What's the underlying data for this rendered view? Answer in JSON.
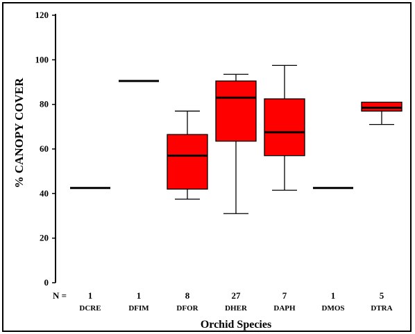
{
  "chart_data": {
    "type": "boxplot",
    "title": "",
    "xlabel": "Orchid Species",
    "ylabel": "% CANOPY COVER",
    "ylim": [
      0,
      120
    ],
    "yticks": [
      0,
      20,
      40,
      60,
      80,
      100,
      120
    ],
    "grid": false,
    "n_prefix": "N =",
    "box_color": "#ff0000",
    "categories": [
      "DCRE",
      "DFIM",
      "DFOR",
      "DHER",
      "DAPH",
      "DMOS",
      "DTRA"
    ],
    "n": [
      "1",
      "1",
      "8",
      "27",
      "7",
      "1",
      "5"
    ],
    "boxes": [
      {
        "min": 42.5,
        "q1": 42.5,
        "median": 42.5,
        "q3": 42.5,
        "max": 42.5
      },
      {
        "min": 90.5,
        "q1": 90.5,
        "median": 90.5,
        "q3": 90.5,
        "max": 90.5
      },
      {
        "min": 37.5,
        "q1": 42,
        "median": 57,
        "q3": 66.5,
        "max": 77
      },
      {
        "min": 31,
        "q1": 63.5,
        "median": 83,
        "q3": 90.5,
        "max": 93.5
      },
      {
        "min": 41.5,
        "q1": 57,
        "median": 67.5,
        "q3": 82.5,
        "max": 97.5
      },
      {
        "min": 42.5,
        "q1": 42.5,
        "median": 42.5,
        "q3": 42.5,
        "max": 42.5
      },
      {
        "min": 71,
        "q1": 77,
        "median": 78.5,
        "q3": 81,
        "max": 81
      }
    ]
  }
}
